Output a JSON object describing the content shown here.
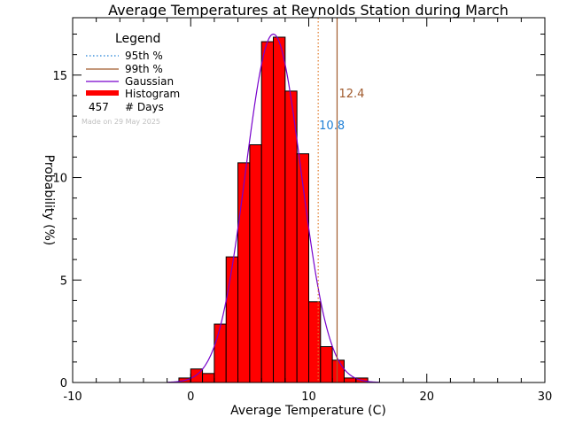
{
  "chart_data": {
    "type": "bar",
    "title": "Average Temperatures at Reynolds Station during March",
    "xlabel": "Average Temperature (C)",
    "ylabel": "Probability (%)",
    "xlim": [
      -10,
      30
    ],
    "ylim": [
      0,
      17.8
    ],
    "xticks": [
      "-10",
      "0",
      "10",
      "20",
      "30"
    ],
    "yticks": [
      "0",
      "5",
      "10",
      "15"
    ],
    "bin_width": 1,
    "histogram": {
      "name": "Histogram",
      "color": "#ff0000",
      "bins": [
        {
          "x0": -1,
          "value": 0.22
        },
        {
          "x0": 0,
          "value": 0.66
        },
        {
          "x0": 1,
          "value": 0.44
        },
        {
          "x0": 2,
          "value": 2.85
        },
        {
          "x0": 3,
          "value": 6.13
        },
        {
          "x0": 4,
          "value": 10.72
        },
        {
          "x0": 5,
          "value": 11.6
        },
        {
          "x0": 6,
          "value": 16.63
        },
        {
          "x0": 7,
          "value": 16.85
        },
        {
          "x0": 8,
          "value": 14.22
        },
        {
          "x0": 9,
          "value": 11.16
        },
        {
          "x0": 10,
          "value": 3.94
        },
        {
          "x0": 11,
          "value": 1.75
        },
        {
          "x0": 12,
          "value": 1.09
        },
        {
          "x0": 13,
          "value": 0.22
        },
        {
          "x0": 14,
          "value": 0.22
        }
      ]
    },
    "gaussian": {
      "name": "Gaussian",
      "color": "#7700cc",
      "mean": 7.0,
      "sd": 2.35,
      "peak": 17.0
    },
    "percentiles": [
      {
        "name": "95th %",
        "value": 10.8,
        "label": "10.8",
        "color": "#e07a2a",
        "style": "dotted",
        "label_color": "#1e7fd6"
      },
      {
        "name": "99th %",
        "value": 12.4,
        "label": "12.4",
        "color": "#a05a2c",
        "style": "solid",
        "label_color": "#a05a2c"
      }
    ],
    "legend": {
      "title": "Legend",
      "placement": "top-left",
      "days_count": "457",
      "days_label": "# Days",
      "made_on": "Made on 29 May 2025"
    }
  }
}
